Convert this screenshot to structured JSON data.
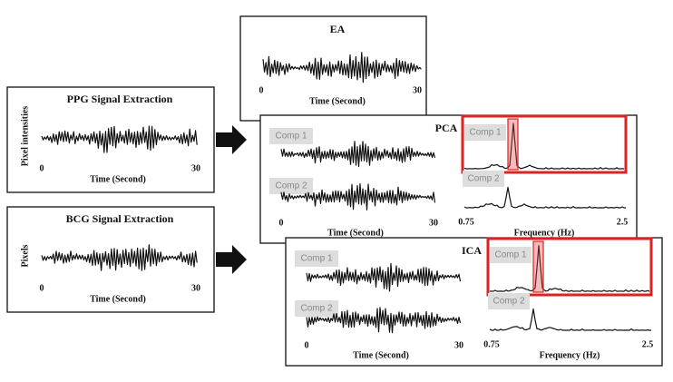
{
  "panels": {
    "ppg": {
      "title": "PPG Signal Extraction",
      "y_label": "Pixel intensities",
      "x_start": "0",
      "x_end": "30",
      "x_label": "Time (Second)"
    },
    "bcg": {
      "title": "BCG Signal Extraction",
      "y_label": "Pixels",
      "x_start": "0",
      "x_end": "30",
      "x_label": "Time (Second)"
    },
    "ea": {
      "title": "EA",
      "x_start": "0",
      "x_end": "30",
      "x_label": "Time (Second)"
    },
    "pca": {
      "title": "PCA",
      "components": [
        "Comp 1",
        "Comp 2"
      ],
      "x_start": "0",
      "x_end": "30",
      "x_label": "Time (Second)",
      "spectra_components": [
        "Comp 1",
        "Comp 2"
      ],
      "f_start": "0.75",
      "f_end": "2.5",
      "f_label": "Frequency (Hz)"
    },
    "ica": {
      "title": "ICA",
      "components": [
        "Comp 1",
        "Comp 2"
      ],
      "x_start": "0",
      "x_end": "30",
      "x_label": "Time (Second)",
      "spectra_components": [
        "Comp 1",
        "Comp 2"
      ],
      "f_start": "0.75",
      "f_end": "2.5",
      "f_label": "Frequency (Hz)"
    }
  }
}
